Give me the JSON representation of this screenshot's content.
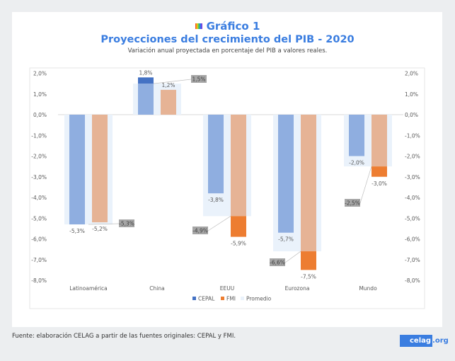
{
  "header": {
    "title": "Gráfico 1",
    "subtitle": "Proyecciones del crecimiento del PIB - 2020",
    "description": "Variación anual proyectada en porcentaje del PIB a valores reales."
  },
  "footer": {
    "source": "Fuente: elaboración CELAG a partir de las fuentes originales: CEPAL y FMI.",
    "logo_main": "celag",
    "logo_suffix": ".org"
  },
  "chart_data": {
    "type": "bar",
    "categories": [
      "Latinoamérica",
      "China",
      "EEUU",
      "Eurozona",
      "Mundo"
    ],
    "series": [
      {
        "name": "CEPAL",
        "values": [
          -5.3,
          1.8,
          -3.8,
          -5.7,
          -2.0
        ],
        "labels": [
          "-5,3%",
          "1,8%",
          "-3,8%",
          "-5,7%",
          "-2,0%"
        ]
      },
      {
        "name": "FMI",
        "values": [
          -5.2,
          1.2,
          -5.9,
          -7.5,
          -3.0
        ],
        "labels": [
          "-5,2%",
          "1,2%",
          "-5,9%",
          "-7,5%",
          "-3,0%"
        ]
      },
      {
        "name": "Promedio",
        "values": [
          -5.3,
          1.5,
          -4.9,
          -6.6,
          -2.5
        ],
        "labels": [
          "-5,3%",
          "1,5%",
          "-4,9%",
          "-6,6%",
          "-2,5%"
        ]
      }
    ],
    "ylim": [
      -8,
      2
    ],
    "yticks": [
      "2,0%",
      "1,0%",
      "0,0%",
      "-1,0%",
      "-2,0%",
      "-3,0%",
      "-4,0%",
      "-5,0%",
      "-6,0%",
      "-7,0%",
      "-8,0%"
    ],
    "legend": "bottom",
    "grid": false,
    "colors": {
      "cepal_light": "#8faee0",
      "cepal_dark": "#4472c4",
      "fmi_light": "#e6b395",
      "fmi_dark": "#ed7d31",
      "promedio": "#eaf2fb",
      "label_box": "#a6a6a6"
    }
  }
}
